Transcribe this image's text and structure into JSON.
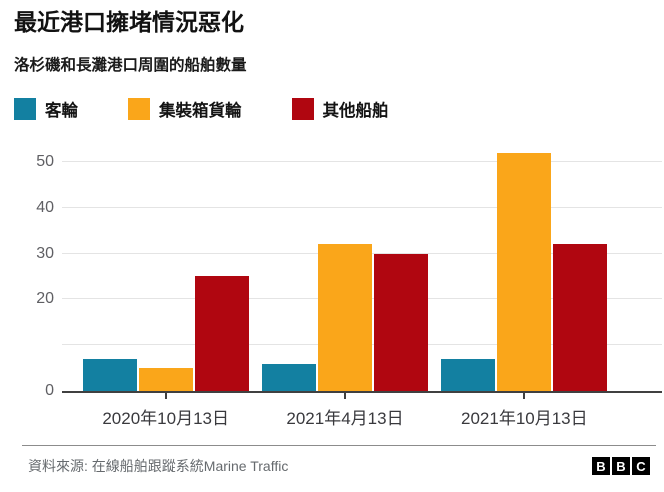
{
  "header": {
    "title": "最近港口擁堵情況惡化",
    "subtitle": "洛杉磯和長灘港口周圍的船舶數量"
  },
  "legend": {
    "items": [
      {
        "label": "客輪",
        "color": "#1380A1"
      },
      {
        "label": "集裝箱貨輪",
        "color": "#FAA61A"
      },
      {
        "label": "其他船舶",
        "color": "#B00610"
      }
    ]
  },
  "chart_data": {
    "type": "bar",
    "title": "最近港口擁堵情況惡化",
    "subtitle": "洛杉磯和長灘港口周圍的船舶數量",
    "categories": [
      "2020年10月13日",
      "2021年4月13日",
      "2021年10月13日"
    ],
    "series": [
      {
        "name": "客輪",
        "color": "#1380A1",
        "values": [
          7,
          6,
          7
        ]
      },
      {
        "name": "集裝箱貨輪",
        "color": "#FAA61A",
        "values": [
          5,
          32,
          52
        ]
      },
      {
        "name": "其他船舶",
        "color": "#B00610",
        "values": [
          25,
          30,
          32
        ]
      }
    ],
    "xlabel": "",
    "ylabel": "",
    "ylim": [
      0,
      55
    ],
    "gridlines": [
      0,
      10,
      20,
      30,
      40,
      50
    ],
    "yticks": [
      {
        "value": 0,
        "label": "0"
      },
      {
        "value": 20,
        "label": "20"
      },
      {
        "value": 30,
        "label": "30"
      },
      {
        "value": 40,
        "label": "40"
      },
      {
        "value": 50,
        "label": "50"
      }
    ],
    "grid": true,
    "legend_position": "top"
  },
  "footer": {
    "source": "資料來源: 在線船舶跟蹤系統Marine Traffic",
    "logo_letters": [
      "B",
      "B",
      "C"
    ]
  },
  "colors": {
    "baseline": "#404040",
    "gridline": "#e4e4e4",
    "y_label": "#5f5f63",
    "x_label": "#39393d"
  }
}
